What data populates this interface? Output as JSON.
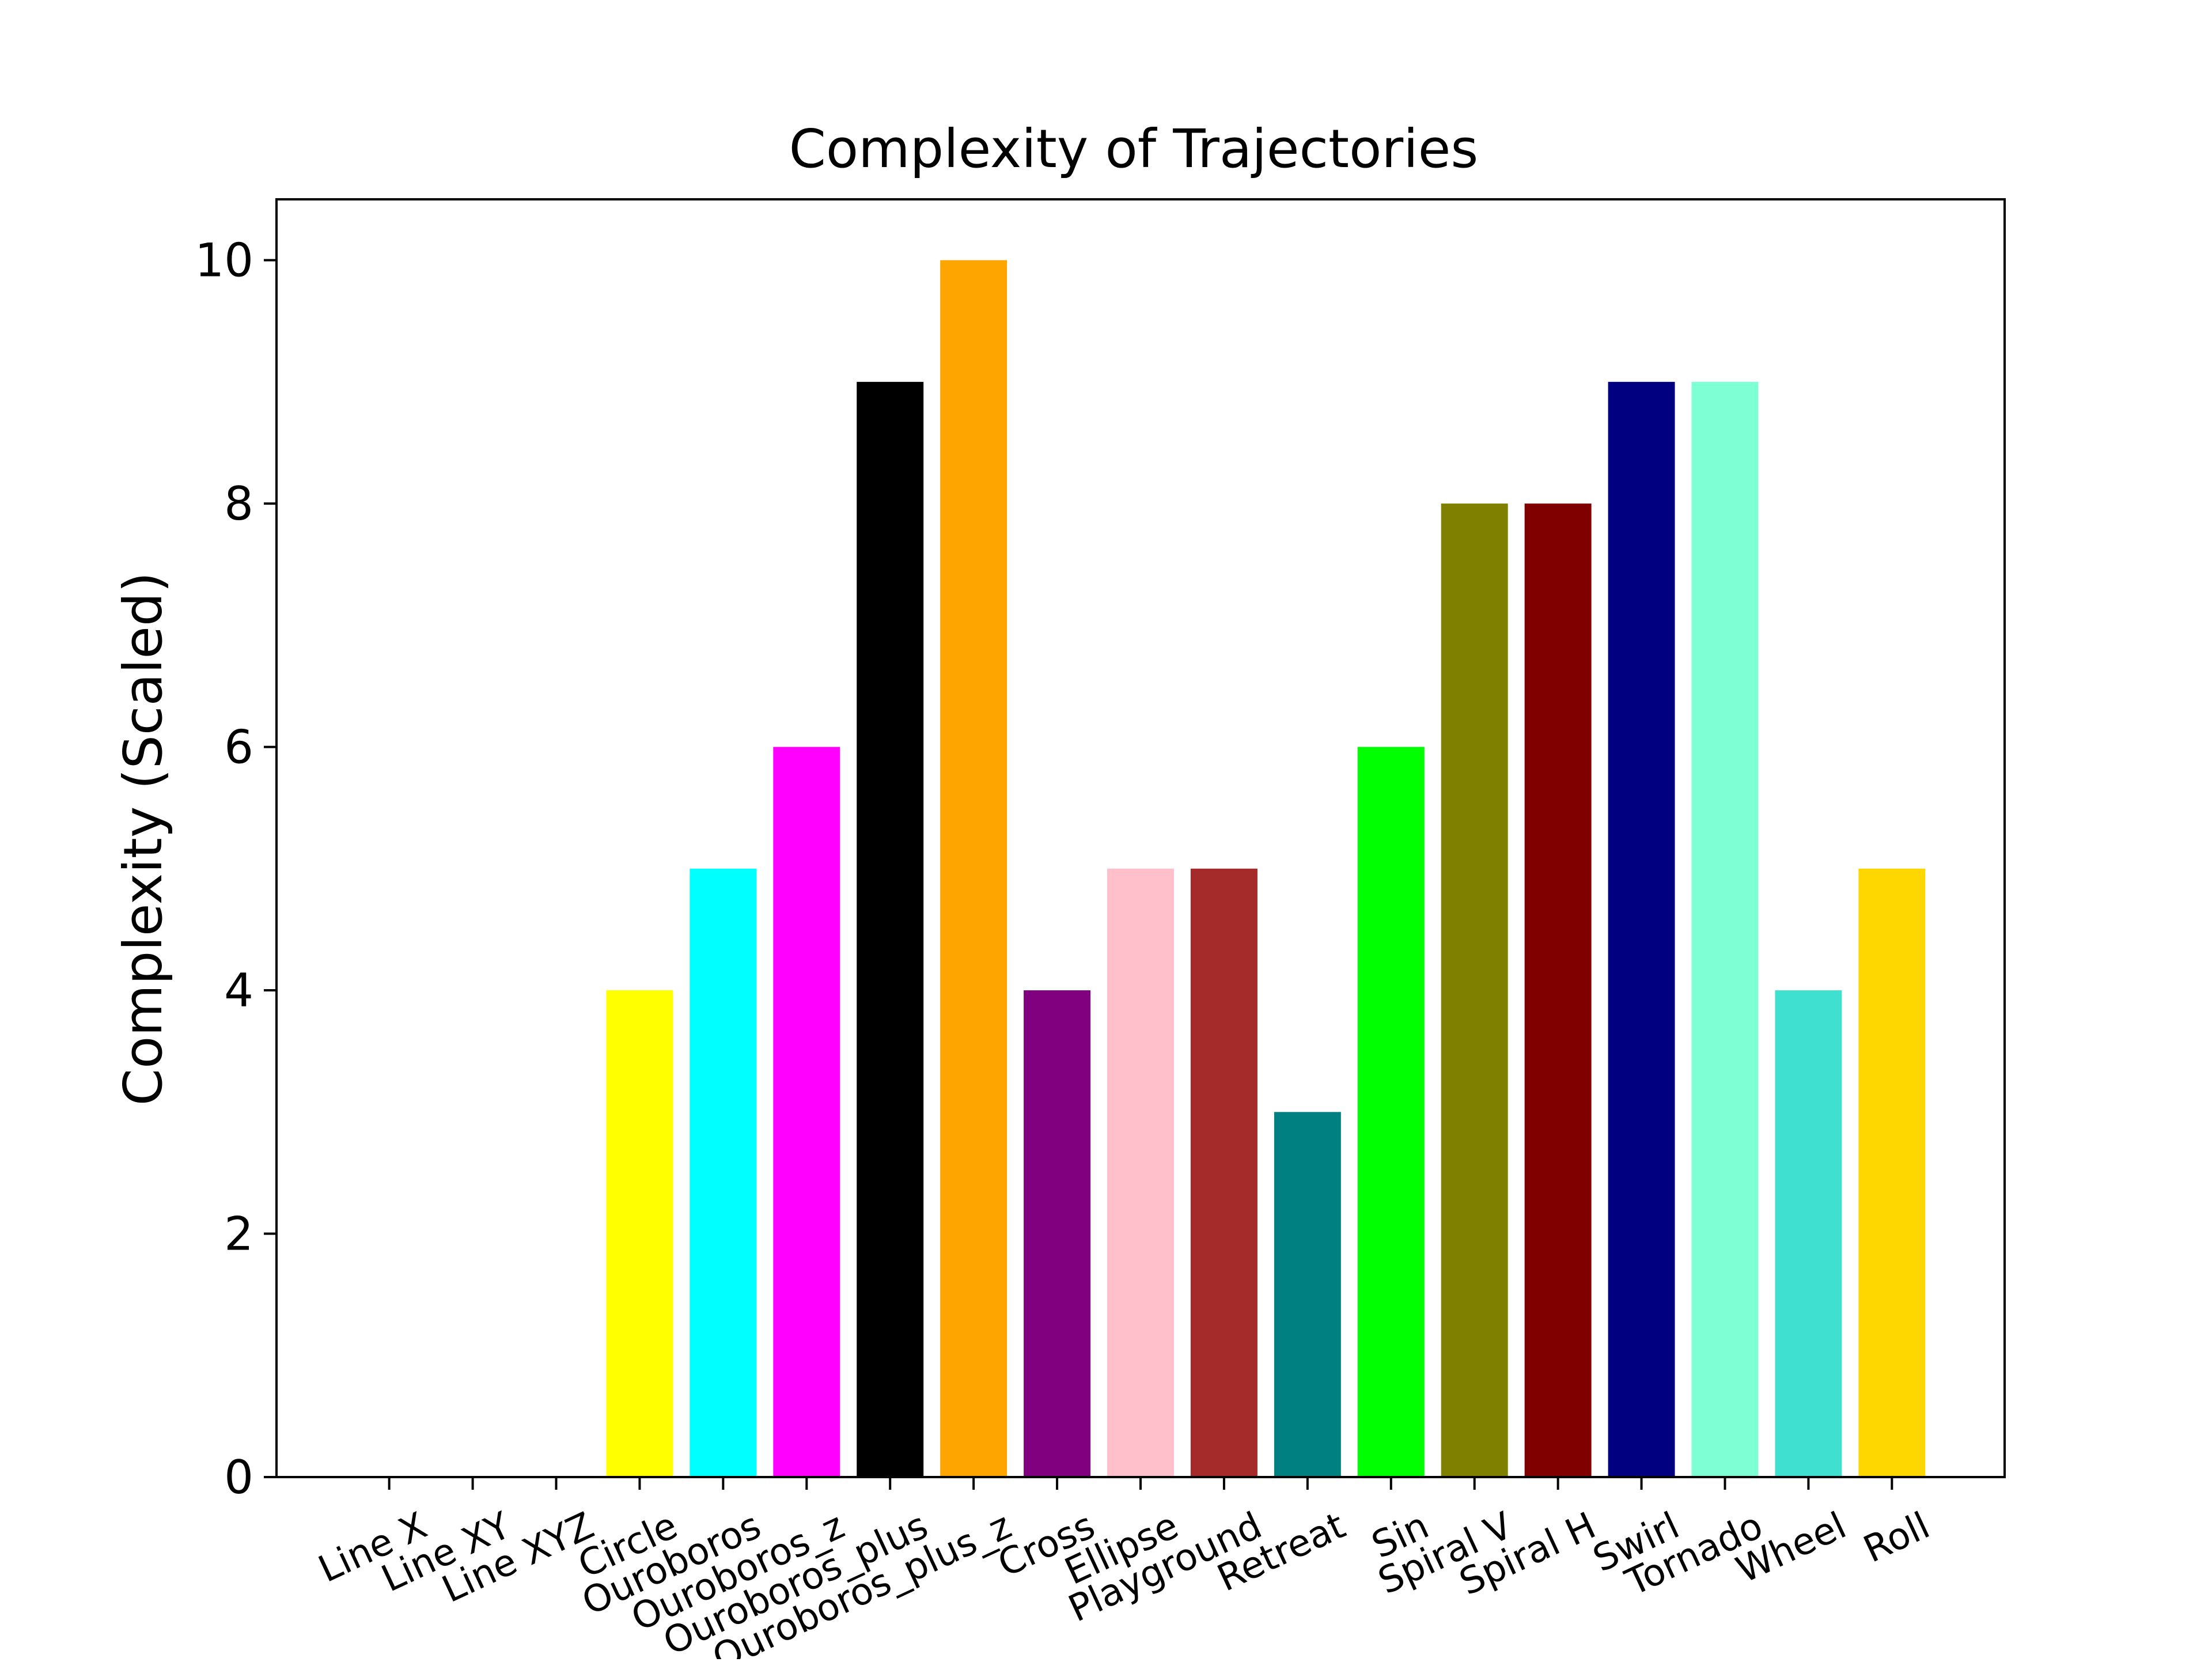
{
  "chart_data": {
    "type": "bar",
    "title": "Complexity of Trajectories",
    "xlabel": "",
    "ylabel": "Complexity (Scaled)",
    "ylim": [
      0,
      10.5
    ],
    "yticks": [
      0,
      2,
      4,
      6,
      8,
      10
    ],
    "grid": false,
    "categories": [
      "Line X",
      "Line XY",
      "Line XYZ",
      "Circle",
      "Ouroboros",
      "Ouroboros_z",
      "Ouroboros_plus",
      "Ouroboros_plus_z",
      "Cross",
      "Ellipse",
      "Playground",
      "Retreat",
      "Sin",
      "Spiral V",
      "Spiral H",
      "Swirl",
      "Tornado",
      "Wheel",
      "Roll"
    ],
    "values": [
      0,
      0,
      0,
      4,
      5,
      6,
      9,
      10,
      4,
      5,
      5,
      3,
      6,
      8,
      8,
      9,
      9,
      4,
      5
    ],
    "colors": [
      "#1f77b4",
      "#ff7f0e",
      "#2ca02c",
      "#ffff00",
      "#00ffff",
      "#ff00ff",
      "#000000",
      "#ffa500",
      "#800080",
      "#ffc0cb",
      "#a52a2a",
      "#008080",
      "#00ff00",
      "#808000",
      "#800000",
      "#000080",
      "#7fffd4",
      "#40e0d0",
      "#ffd700"
    ]
  }
}
